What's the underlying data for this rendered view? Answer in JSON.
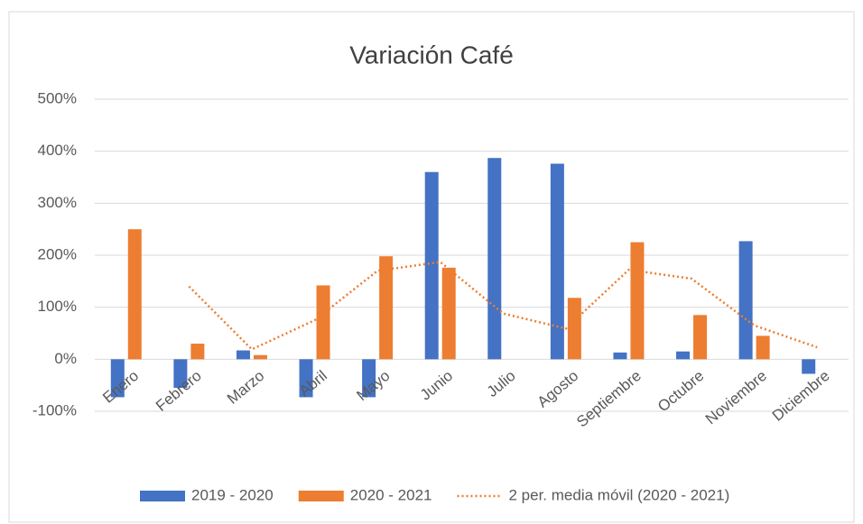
{
  "chart_data": {
    "type": "bar",
    "title": "Variación Café",
    "categories": [
      "Enero",
      "Febrero",
      "Marzo",
      "Abril",
      "Mayo",
      "Junio",
      "Julio",
      "Agosto",
      "Septiembre",
      "Octubre",
      "Noviembre",
      "Diciembre"
    ],
    "series": [
      {
        "name": "2019 - 2020",
        "color": "#4472c4",
        "type": "bar",
        "values": [
          -73,
          -55,
          17,
          -73,
          -73,
          360,
          387,
          376,
          13,
          15,
          227,
          -28
        ]
      },
      {
        "name": "2020 - 2021",
        "color": "#ed7d31",
        "type": "bar",
        "values": [
          250,
          30,
          8,
          142,
          198,
          176,
          0,
          118,
          225,
          85,
          45,
          0
        ]
      },
      {
        "name": "2 per. media móvil (2020 - 2021)",
        "color": "#ed7d31",
        "type": "line",
        "dashed": true,
        "values": [
          null,
          140,
          19,
          75,
          170,
          187,
          88,
          59,
          172,
          155,
          65,
          23
        ]
      }
    ],
    "ylim": [
      -100,
      500
    ],
    "yticks": [
      {
        "value": -100,
        "label": "-100%"
      },
      {
        "value": 0,
        "label": "0%"
      },
      {
        "value": 100,
        "label": "100%"
      },
      {
        "value": 200,
        "label": "200%"
      },
      {
        "value": 300,
        "label": "300%"
      },
      {
        "value": 400,
        "label": "400%"
      },
      {
        "value": 500,
        "label": "500%"
      }
    ],
    "grid": true,
    "legend": "bottom"
  }
}
